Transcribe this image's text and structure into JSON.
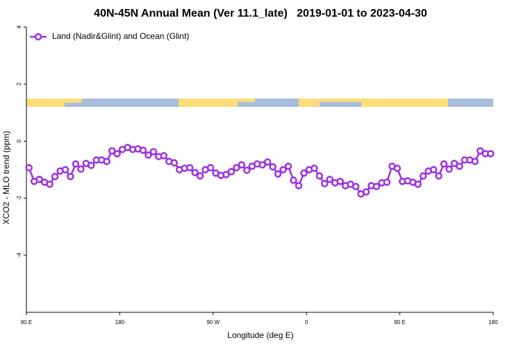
{
  "chart_data": {
    "type": "line",
    "title": "40N-45N Annual Mean (Ver 11.1_late)   2019-01-01 to 2023-04-30",
    "xlabel": "Longitude (deg E)",
    "ylabel": "XCO2 - MLO trend (ppm)",
    "xlim": [
      90,
      540
    ],
    "xticks": [
      {
        "value": 90,
        "label": "90 E"
      },
      180,
      {
        "value": 270,
        "label": "90 W"
      },
      {
        "value": 360,
        "label": "0"
      },
      {
        "value": 450,
        "label": "90 E"
      },
      {
        "value": 540,
        "label": "180"
      }
    ],
    "ylim": [
      -6,
      4
    ],
    "yticks": [
      -4,
      -2,
      0,
      2,
      4
    ],
    "legend": "upper left",
    "x": [
      92.5,
      97.5,
      102.5,
      107.5,
      112.5,
      117.5,
      122.5,
      127.5,
      132.5,
      137.5,
      142.5,
      147.5,
      152.5,
      157.5,
      162.5,
      167.5,
      172.5,
      177.5,
      182.5,
      187.5,
      192.5,
      197.5,
      202.5,
      207.5,
      212.5,
      217.5,
      222.5,
      227.5,
      232.5,
      237.5,
      242.5,
      247.5,
      252.5,
      257.5,
      262.5,
      267.5,
      272.5,
      277.5,
      282.5,
      287.5,
      292.5,
      297.5,
      302.5,
      307.5,
      312.5,
      317.5,
      322.5,
      327.5,
      332.5,
      337.5,
      342.5,
      347.5,
      352.5,
      357.5,
      362.5,
      367.5,
      372.5,
      377.5,
      382.5,
      387.5,
      392.5,
      397.5,
      402.5,
      407.5,
      412.5,
      417.5,
      422.5,
      427.5,
      432.5,
      437.5,
      442.5,
      447.5,
      452.5,
      457.5,
      462.5,
      467.5,
      472.5,
      477.5,
      482.5,
      487.5,
      492.5,
      497.5,
      502.5,
      507.5,
      512.5,
      517.5,
      522.5,
      527.5,
      532.5,
      537.5
    ],
    "series": [
      {
        "name": "Land (Nadir&Glint) and Ocean (Glint)",
        "color": "#9b30e0",
        "values": [
          -0.93,
          -1.41,
          -1.34,
          -1.44,
          -1.51,
          -1.24,
          -1.05,
          -1.0,
          -1.24,
          -0.8,
          -0.98,
          -0.78,
          -0.85,
          -0.66,
          -0.66,
          -0.71,
          -0.34,
          -0.44,
          -0.29,
          -0.22,
          -0.29,
          -0.27,
          -0.32,
          -0.49,
          -0.37,
          -0.54,
          -0.51,
          -0.71,
          -0.76,
          -1.0,
          -0.95,
          -0.93,
          -1.1,
          -1.22,
          -1.0,
          -0.93,
          -1.12,
          -1.2,
          -1.17,
          -1.07,
          -0.93,
          -0.83,
          -1.02,
          -0.88,
          -0.8,
          -0.83,
          -0.73,
          -0.9,
          -1.15,
          -1.0,
          -0.88,
          -1.37,
          -1.56,
          -1.12,
          -1.0,
          -0.95,
          -1.22,
          -1.49,
          -1.34,
          -1.46,
          -1.41,
          -1.56,
          -1.51,
          -1.59,
          -1.85,
          -1.78,
          -1.56,
          -1.59,
          -1.46,
          -1.44,
          -0.88,
          -0.95,
          -1.41,
          -1.39,
          -1.44,
          -1.51,
          -1.22,
          -1.05,
          -1.0,
          -1.22,
          -0.8,
          -0.98,
          -0.78,
          -0.88,
          -0.66,
          -0.66,
          -0.71,
          -0.34,
          -0.44,
          -0.44
        ]
      }
    ]
  }
}
